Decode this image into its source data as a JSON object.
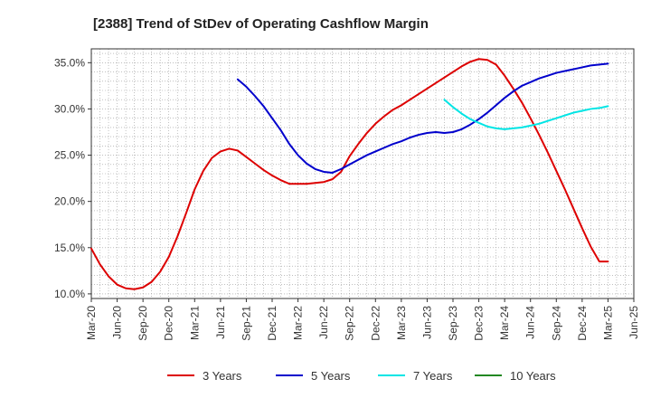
{
  "chart_data": {
    "type": "line",
    "title": "[2388]  Trend of StDev of Operating Cashflow Margin",
    "xlabel": "",
    "ylabel": "",
    "ylim": [
      9.5,
      36.5
    ],
    "yticks": [
      10,
      15,
      20,
      25,
      30,
      35
    ],
    "ytick_labels": [
      "10.0%",
      "15.0%",
      "20.0%",
      "25.0%",
      "30.0%",
      "35.0%"
    ],
    "xlim": [
      "2020-03",
      "2025-06"
    ],
    "xtick_labels": [
      "Mar-20",
      "Jun-20",
      "Sep-20",
      "Dec-20",
      "Mar-21",
      "Jun-21",
      "Sep-21",
      "Dec-21",
      "Mar-22",
      "Jun-22",
      "Sep-22",
      "Dec-22",
      "Mar-23",
      "Jun-23",
      "Sep-23",
      "Dec-23",
      "Mar-24",
      "Jun-24",
      "Sep-24",
      "Dec-24",
      "Mar-25",
      "Jun-25"
    ],
    "grid": true,
    "legend_position": "bottom",
    "series": [
      {
        "name": "3 Years",
        "color": "#dd0000",
        "x": [
          "2020-03",
          "2020-04",
          "2020-05",
          "2020-06",
          "2020-07",
          "2020-08",
          "2020-09",
          "2020-10",
          "2020-11",
          "2020-12",
          "2021-01",
          "2021-02",
          "2021-03",
          "2021-04",
          "2021-05",
          "2021-06",
          "2021-07",
          "2021-08",
          "2021-09",
          "2021-10",
          "2021-11",
          "2021-12",
          "2022-01",
          "2022-02",
          "2022-03",
          "2022-04",
          "2022-05",
          "2022-06",
          "2022-07",
          "2022-08",
          "2022-09",
          "2022-10",
          "2022-11",
          "2022-12",
          "2023-01",
          "2023-02",
          "2023-03",
          "2023-04",
          "2023-05",
          "2023-06",
          "2023-07",
          "2023-08",
          "2023-09",
          "2023-10",
          "2023-11",
          "2023-12",
          "2024-01",
          "2024-02",
          "2024-03",
          "2024-04",
          "2024-05",
          "2024-06",
          "2024-07",
          "2024-08",
          "2024-09",
          "2024-10",
          "2024-11",
          "2024-12",
          "2025-01",
          "2025-02",
          "2025-03"
        ],
        "values": [
          14.9,
          13.2,
          11.9,
          11.0,
          10.6,
          10.5,
          10.7,
          11.3,
          12.4,
          14.0,
          16.2,
          18.7,
          21.3,
          23.3,
          24.7,
          25.4,
          25.7,
          25.5,
          24.8,
          24.1,
          23.4,
          22.8,
          22.3,
          21.9,
          21.9,
          21.9,
          22.0,
          22.1,
          22.4,
          23.2,
          24.9,
          26.2,
          27.4,
          28.4,
          29.2,
          29.9,
          30.4,
          31.0,
          31.6,
          32.2,
          32.8,
          33.4,
          34.0,
          34.6,
          35.1,
          35.4,
          35.3,
          34.8,
          33.6,
          32.2,
          30.7,
          29.0,
          27.2,
          25.3,
          23.3,
          21.3,
          19.2,
          17.1,
          15.1,
          13.5,
          13.5
        ]
      },
      {
        "name": "5 Years",
        "color": "#0000cc",
        "x": [
          "2021-08",
          "2021-09",
          "2021-10",
          "2021-11",
          "2021-12",
          "2022-01",
          "2022-02",
          "2022-03",
          "2022-04",
          "2022-05",
          "2022-06",
          "2022-07",
          "2022-08",
          "2022-09",
          "2022-10",
          "2022-11",
          "2022-12",
          "2023-01",
          "2023-02",
          "2023-03",
          "2023-04",
          "2023-05",
          "2023-06",
          "2023-07",
          "2023-08",
          "2023-09",
          "2023-10",
          "2023-11",
          "2023-12",
          "2024-01",
          "2024-02",
          "2024-03",
          "2024-04",
          "2024-05",
          "2024-06",
          "2024-07",
          "2024-08",
          "2024-09",
          "2024-10",
          "2024-11",
          "2024-12",
          "2025-01",
          "2025-02",
          "2025-03"
        ],
        "values": [
          33.2,
          32.4,
          31.4,
          30.3,
          29.0,
          27.7,
          26.2,
          25.0,
          24.1,
          23.5,
          23.2,
          23.1,
          23.5,
          24.0,
          24.5,
          25.0,
          25.4,
          25.8,
          26.2,
          26.5,
          26.9,
          27.2,
          27.4,
          27.5,
          27.4,
          27.5,
          27.8,
          28.3,
          28.9,
          29.6,
          30.4,
          31.2,
          31.9,
          32.5,
          32.9,
          33.3,
          33.6,
          33.9,
          34.1,
          34.3,
          34.5,
          34.7,
          34.8,
          34.9
        ]
      },
      {
        "name": "7 Years",
        "color": "#00e5e5",
        "x": [
          "2023-08",
          "2023-09",
          "2023-10",
          "2023-11",
          "2023-12",
          "2024-01",
          "2024-02",
          "2024-03",
          "2024-04",
          "2024-05",
          "2024-06",
          "2024-07",
          "2024-08",
          "2024-09",
          "2024-10",
          "2024-11",
          "2024-12",
          "2025-01",
          "2025-02",
          "2025-03"
        ],
        "values": [
          31.0,
          30.2,
          29.5,
          28.9,
          28.5,
          28.1,
          27.9,
          27.8,
          27.9,
          28.0,
          28.2,
          28.4,
          28.7,
          29.0,
          29.3,
          29.6,
          29.8,
          30.0,
          30.1,
          30.3
        ]
      },
      {
        "name": "10 Years",
        "color": "#228822",
        "x": [],
        "values": []
      }
    ]
  }
}
